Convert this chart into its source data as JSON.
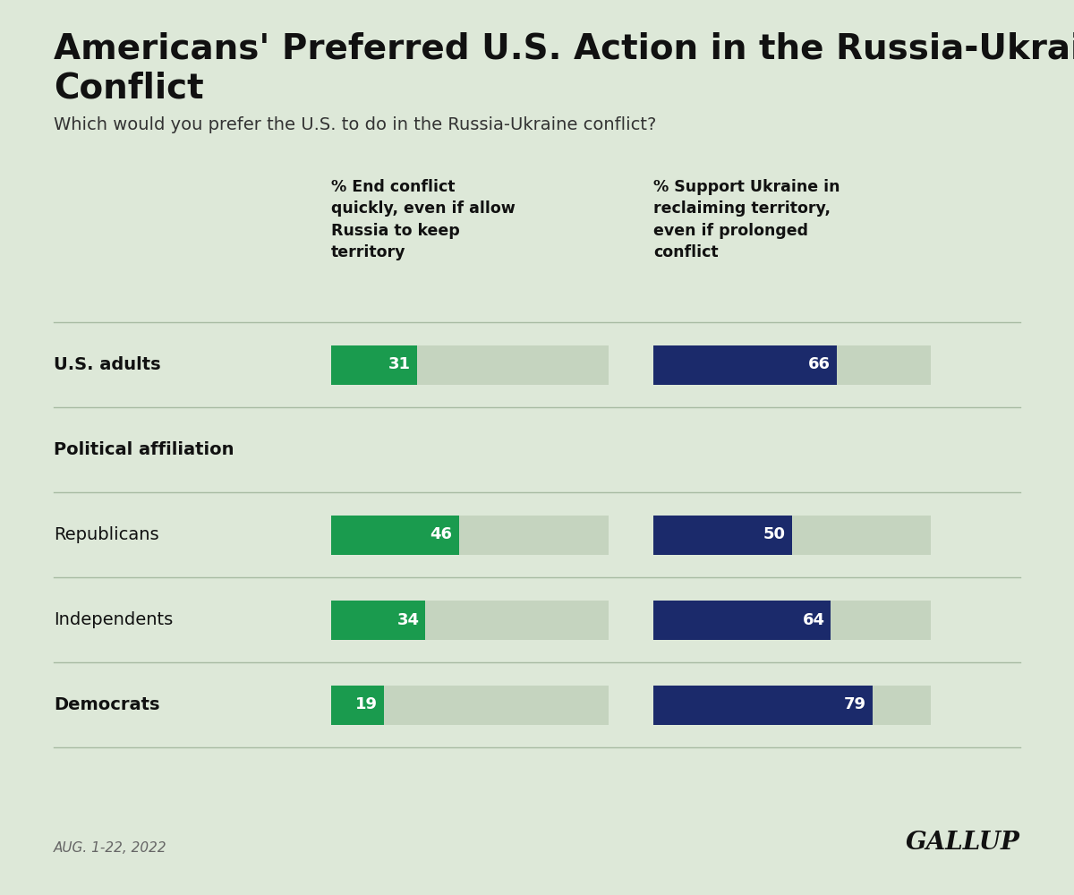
{
  "title_line1": "Americans' Preferred U.S. Action in the Russia-Ukraine",
  "title_line2": "Conflict",
  "subtitle": "Which would you prefer the U.S. to do in the Russia-Ukraine conflict?",
  "col1_header": "% End conflict\nquickly, even if allow\nRussia to keep\nterritory",
  "col2_header": "% Support Ukraine in\nreclaiming territory,\neven if prolonged\nconflict",
  "rows": [
    {
      "label": "U.S. adults",
      "bold": true,
      "separator_above": true,
      "col1": 31,
      "col2": 66,
      "header_only": false
    },
    {
      "label": "Political affiliation",
      "bold": true,
      "separator_above": true,
      "col1": null,
      "col2": null,
      "header_only": true
    },
    {
      "label": "Republicans",
      "bold": false,
      "separator_above": true,
      "col1": 46,
      "col2": 50,
      "header_only": false
    },
    {
      "label": "Independents",
      "bold": false,
      "separator_above": true,
      "col1": 34,
      "col2": 64,
      "header_only": false
    },
    {
      "label": "Democrats",
      "bold": true,
      "separator_above": true,
      "col1": 19,
      "col2": 79,
      "header_only": false
    }
  ],
  "green_color": "#1a9b4e",
  "navy_color": "#1b2a6b",
  "background_color": "#dde8d8",
  "bar_bg_color": "#c5d4bf",
  "separator_color": "#a8bba3",
  "bar_max": 100,
  "date_text": "AUG. 1-22, 2022",
  "gallup_text": "GALLUP"
}
